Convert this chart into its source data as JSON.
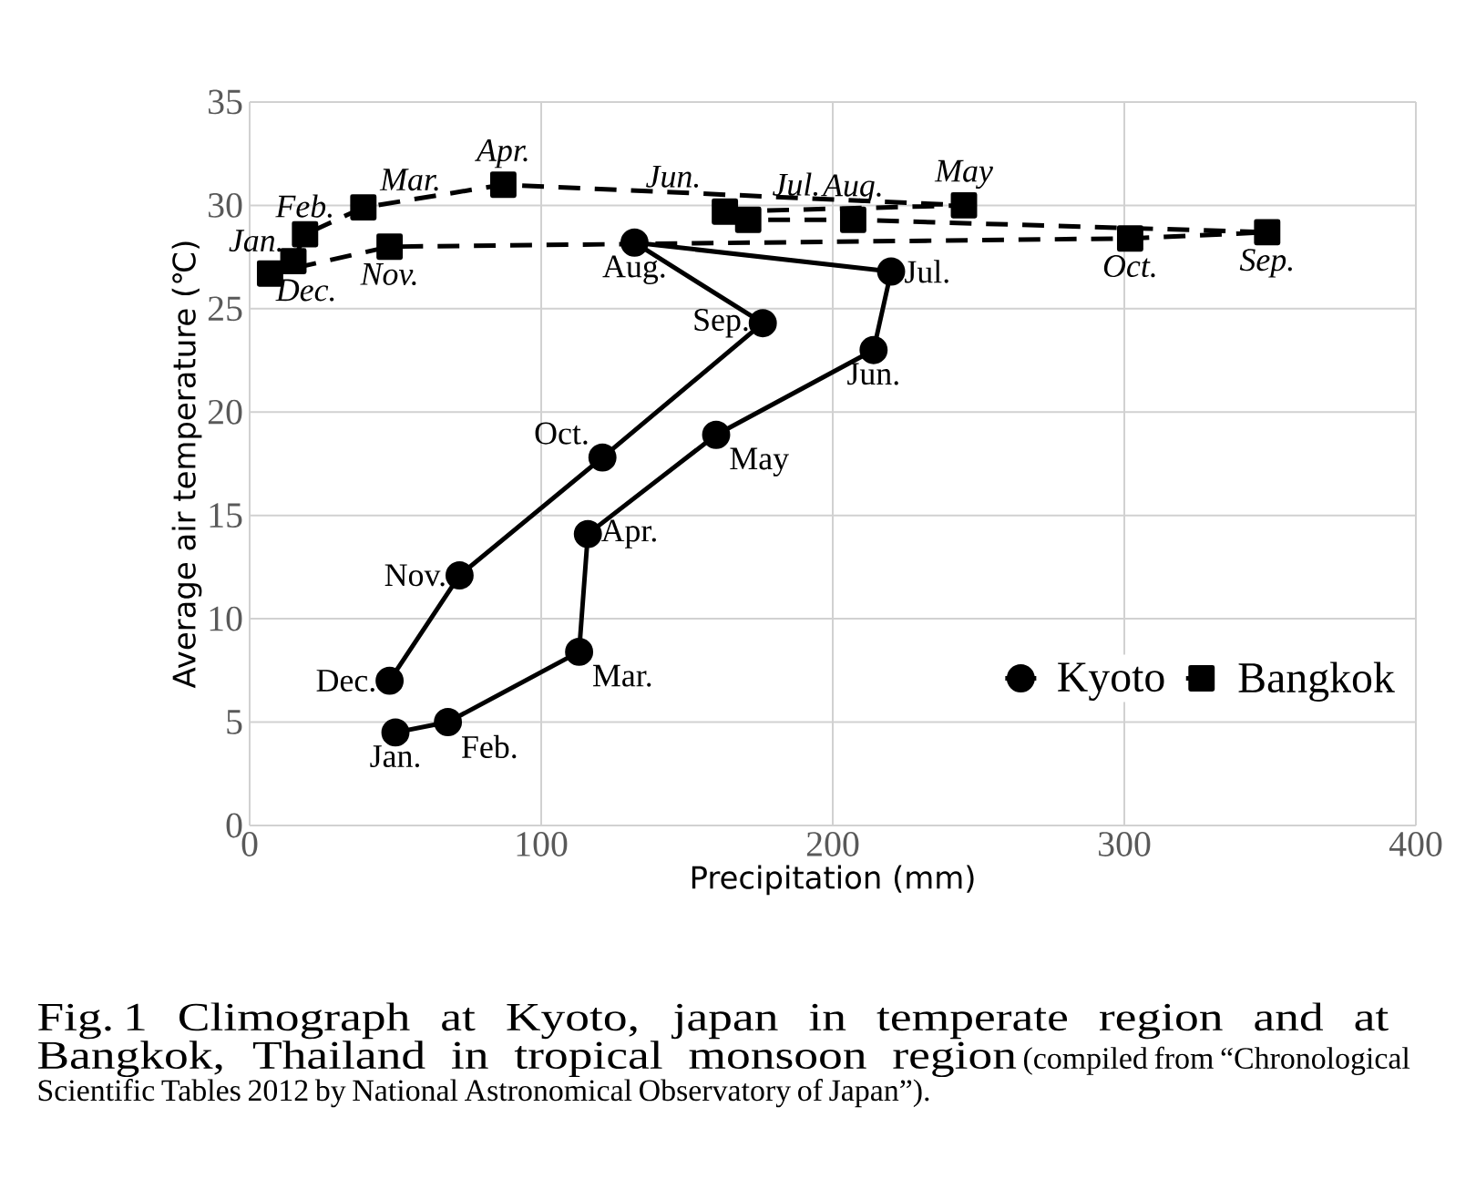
{
  "chart_data": {
    "type": "line",
    "xlabel": "Precipitation  (mm)",
    "ylabel": "Average air temperature (℃)",
    "xlim": [
      0,
      400
    ],
    "xticks": [
      0,
      100,
      200,
      300,
      400
    ],
    "ylim": [
      0,
      35
    ],
    "yticks": [
      0,
      5,
      10,
      15,
      20,
      25,
      30,
      35
    ],
    "grid": true,
    "legend": "bottom right",
    "series": [
      {
        "name": "Kyoto",
        "color": "#000000",
        "marker": "circle",
        "line_style": "solid",
        "x": [
          50,
          68,
          113,
          116,
          160,
          214,
          220,
          132,
          176,
          121,
          72,
          48
        ],
        "values": [
          4.5,
          5.0,
          8.4,
          14.1,
          18.9,
          23.0,
          26.8,
          28.2,
          24.3,
          17.8,
          12.1,
          7.0
        ],
        "value_labels": [
          "Jan.",
          "Feb.",
          "Mar.",
          "Apr.",
          "May",
          "Jun.",
          "Jul.",
          "Aug.",
          "Sep.",
          "Oct.",
          "Nov.",
          "Dec."
        ]
      },
      {
        "name": "Bangkok",
        "color": "#000000",
        "marker": "square",
        "line_style": "dashed",
        "x": [
          15,
          19,
          39,
          87,
          245,
          163,
          171,
          207,
          349,
          302,
          48,
          7
        ],
        "values": [
          27.3,
          28.6,
          29.9,
          31.0,
          30.0,
          29.7,
          29.3,
          29.3,
          28.7,
          28.4,
          28.0,
          26.7
        ],
        "value_labels": [
          "Jan.",
          "Feb.",
          "Mar.",
          "Apr.",
          "May",
          "Jun.",
          "Jul.",
          "Aug.",
          "Sep.",
          "Oct.",
          "Nov.",
          "Dec."
        ]
      }
    ],
    "annotations": [
      "Fig. 1 Climograph at Kyoto, japan in temperate region and at Bangkok, Thailand in tropical monsoon region",
      "(compiled from “Chronological Scientific Tables 2012 by National Astronomical Observatory of Japan”)."
    ]
  }
}
